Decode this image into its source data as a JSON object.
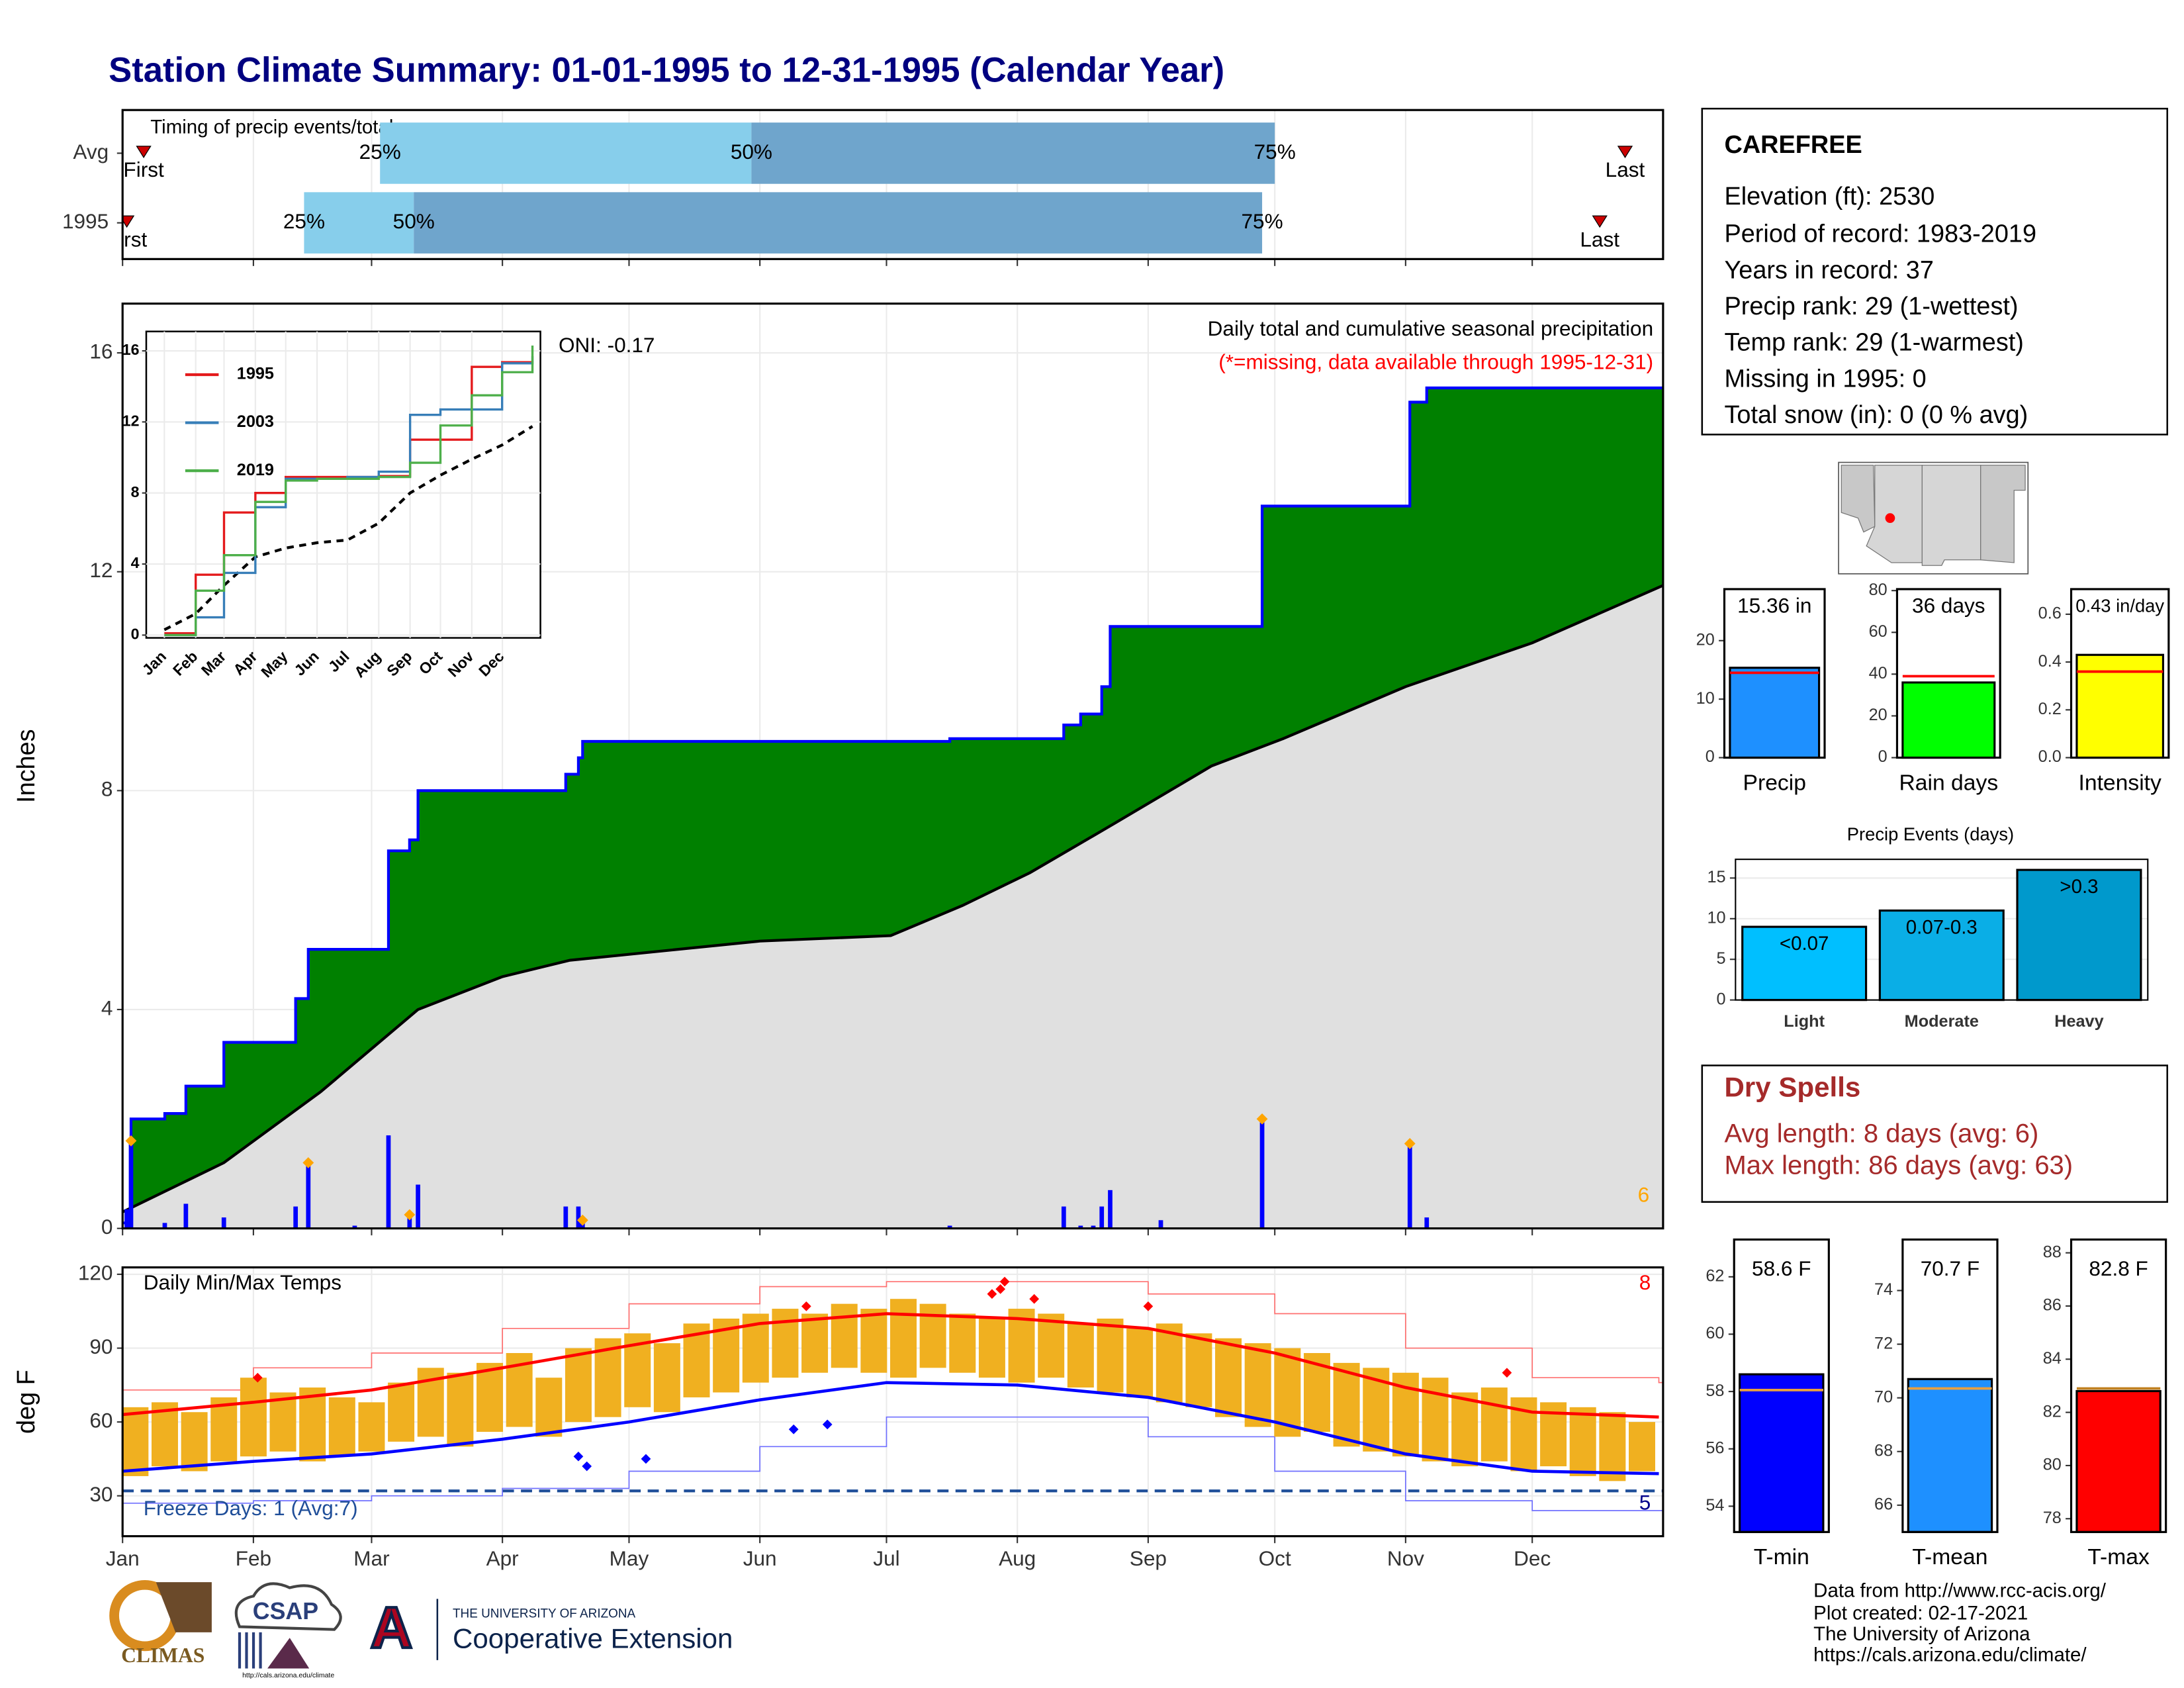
{
  "title": "Station Climate Summary: 01-01-1995 to 12-31-1995 (Calendar Year)",
  "station": {
    "name": "CAREFREE",
    "lines": [
      "Elevation (ft): 2530",
      "Period of record: 1983-2019",
      "Years in record: 37",
      "Precip rank: 29 (1-wettest)",
      "Temp rank: 29 (1-warmest)",
      "Missing in 1995: 0",
      "Total snow (in): 0 (0 % avg)"
    ]
  },
  "dry_spells": {
    "title": "Dry Spells",
    "lines": [
      "Avg length: 8 days (avg: 6)",
      "Max length: 86 days (avg: 63)"
    ]
  },
  "footer": [
    "Data from http://www.rcc-acis.org/",
    "Plot created: 02-17-2021",
    "The University of Arizona",
    "https://cals.arizona.edu/climate/"
  ],
  "logos": {
    "climas": "CLIMAS",
    "csap": "CSAP",
    "csap_url": "http://cals.arizona.edu/climate",
    "ua_mark": "A",
    "ua_name": "THE UNIVERSITY OF ARIZONA",
    "extension": "Cooperative Extension"
  },
  "chart_data": [
    {
      "type": "timing",
      "title": "Timing of precip events/totals",
      "xlim": [
        1,
        366
      ],
      "xticks": [
        1,
        32,
        60,
        91,
        121,
        152,
        182,
        213,
        244,
        274,
        305,
        335
      ],
      "marker_labels": [
        "First",
        "25%",
        "50%",
        "75%",
        "Last"
      ],
      "colors": [
        "#87ceeb",
        "#6fa5cc",
        "#cc0000"
      ],
      "rows": [
        {
          "label": "Avg",
          "values": [
            6,
            62,
            150,
            274,
            357
          ]
        },
        {
          "label": "1995",
          "values": [
            2,
            44,
            70,
            271,
            351
          ]
        }
      ]
    },
    {
      "type": "cumulative",
      "ylabel": "Inches",
      "title": "Daily total and cumulative seasonal precipitation",
      "subtitle": "(*=missing, data available through 1995-12-31)",
      "oni": "ONI: -0.17",
      "record_count": 6,
      "xlim": [
        1,
        366
      ],
      "xticks": [
        1,
        32,
        60,
        91,
        121,
        152,
        182,
        213,
        244,
        274,
        305,
        335
      ],
      "ylim": [
        0,
        16.9
      ],
      "yticks": [
        0,
        4,
        8,
        12,
        16
      ],
      "grid": true,
      "cumulative": {
        "x": [
          1,
          3,
          11,
          16,
          25,
          42,
          45,
          64,
          69,
          71,
          106,
          109,
          110,
          197,
          224,
          228,
          233,
          235,
          271,
          306,
          310
        ],
        "values": [
          0.1,
          2.0,
          2.1,
          2.6,
          3.4,
          4.2,
          5.1,
          6.9,
          7.1,
          8.0,
          8.3,
          8.6,
          8.9,
          8.95,
          9.2,
          9.4,
          9.9,
          11.0,
          13.2,
          15.1,
          15.36
        ],
        "color": "#0000ff",
        "fill": "#008000"
      },
      "average": {
        "x": [
          1,
          25,
          48,
          71,
          91,
          107,
          152,
          183,
          200,
          216,
          236,
          259,
          276,
          305,
          335,
          366
        ],
        "values": [
          0.3,
          1.2,
          2.5,
          4.0,
          4.6,
          4.9,
          5.25,
          5.35,
          5.9,
          6.5,
          7.4,
          8.45,
          8.95,
          9.9,
          10.7,
          11.75
        ],
        "color": "#000000",
        "fill": "#e0e0e0"
      },
      "daily": {
        "x": [
          2,
          3,
          11,
          16,
          25,
          42,
          45,
          56,
          64,
          69,
          71,
          106,
          109,
          110,
          197,
          224,
          228,
          231,
          233,
          235,
          247,
          271,
          306,
          310
        ],
        "values": [
          0.35,
          1.6,
          0.1,
          0.45,
          0.2,
          0.4,
          1.2,
          0.05,
          1.7,
          0.25,
          0.8,
          0.4,
          0.4,
          0.15,
          0.05,
          0.4,
          0.05,
          0.05,
          0.4,
          0.7,
          0.15,
          2.0,
          1.55,
          0.2
        ],
        "records": [
          false,
          true,
          false,
          false,
          false,
          false,
          true,
          false,
          false,
          true,
          false,
          false,
          false,
          true,
          false,
          false,
          false,
          false,
          false,
          false,
          false,
          true,
          true,
          false
        ],
        "color": "#0000ff",
        "record_color": "#ffa500"
      }
    },
    {
      "type": "line",
      "xlim": [
        1,
        366
      ],
      "ylim": [
        0,
        16.7
      ],
      "yticks": [
        0,
        4,
        8,
        12,
        16
      ],
      "xticks": [
        {
          "value": 1,
          "label": "Jan"
        },
        {
          "value": 32,
          "label": "Feb"
        },
        {
          "value": 60,
          "label": "Mar"
        },
        {
          "value": 91,
          "label": "Apr"
        },
        {
          "value": 121,
          "label": "May"
        },
        {
          "value": 152,
          "label": "Jun"
        },
        {
          "value": 182,
          "label": "Jul"
        },
        {
          "value": 213,
          "label": "Aug"
        },
        {
          "value": 244,
          "label": "Sep"
        },
        {
          "value": 274,
          "label": "Oct"
        },
        {
          "value": 305,
          "label": "Nov"
        },
        {
          "value": 335,
          "label": "Dec"
        }
      ],
      "x": [
        1,
        32,
        60,
        91,
        121,
        152,
        182,
        213,
        244,
        274,
        305,
        335,
        365
      ],
      "series": [
        {
          "name": "1995",
          "color": "#e41a1c",
          "values": [
            0.1,
            3.4,
            6.9,
            8.0,
            8.9,
            8.9,
            8.9,
            8.95,
            11.0,
            11.0,
            15.1,
            15.36,
            15.36
          ]
        },
        {
          "name": "2003",
          "color": "#377eb8",
          "values": [
            0,
            1,
            3.5,
            7.2,
            8.8,
            8.8,
            8.9,
            9.2,
            12.4,
            12.7,
            12.7,
            15.3,
            15.7
          ]
        },
        {
          "name": "2019",
          "color": "#4daf4a",
          "values": [
            0,
            2.5,
            4.5,
            7.5,
            8.7,
            8.8,
            8.8,
            8.9,
            9.7,
            11.8,
            13.5,
            14.8,
            16.3
          ]
        }
      ],
      "average": {
        "color": "#000000",
        "values": [
          0.3,
          1.2,
          2.8,
          4.4,
          4.9,
          5.2,
          5.35,
          6.3,
          8.0,
          9.0,
          9.9,
          10.7,
          11.75
        ]
      }
    },
    {
      "type": "temperature",
      "ylabel": "deg F",
      "title": "Daily Min/Max Temps",
      "xlim": [
        1,
        366
      ],
      "ylim": [
        13.6,
        122.8
      ],
      "yticks": [
        30,
        60,
        90,
        120
      ],
      "grid": true,
      "xticks": [
        {
          "value": 1,
          "label": "Jan"
        },
        {
          "value": 32,
          "label": "Feb"
        },
        {
          "value": 60,
          "label": "Mar"
        },
        {
          "value": 91,
          "label": "Apr"
        },
        {
          "value": 121,
          "label": "May"
        },
        {
          "value": 152,
          "label": "Jun"
        },
        {
          "value": 182,
          "label": "Jul"
        },
        {
          "value": 213,
          "label": "Aug"
        },
        {
          "value": 244,
          "label": "Sep"
        },
        {
          "value": 274,
          "label": "Oct"
        },
        {
          "value": 305,
          "label": "Nov"
        },
        {
          "value": 335,
          "label": "Dec"
        }
      ],
      "daily": {
        "color": "#f0b020",
        "x": [
          4,
          11,
          18,
          25,
          32,
          39,
          46,
          53,
          60,
          67,
          74,
          81,
          88,
          95,
          102,
          109,
          116,
          123,
          130,
          137,
          144,
          151,
          158,
          165,
          172,
          179,
          186,
          193,
          200,
          207,
          214,
          221,
          228,
          235,
          242,
          249,
          256,
          263,
          270,
          277,
          284,
          291,
          298,
          305,
          312,
          319,
          326,
          333,
          340,
          347,
          354,
          361
        ],
        "max": [
          66,
          68,
          64,
          70,
          78,
          72,
          74,
          70,
          68,
          76,
          82,
          80,
          84,
          88,
          78,
          90,
          94,
          96,
          92,
          100,
          102,
          104,
          106,
          104,
          108,
          106,
          110,
          108,
          104,
          102,
          106,
          104,
          100,
          102,
          98,
          100,
          96,
          94,
          92,
          90,
          88,
          84,
          82,
          80,
          78,
          72,
          74,
          70,
          68,
          66,
          64,
          60
        ],
        "min": [
          38,
          42,
          40,
          44,
          46,
          48,
          44,
          46,
          48,
          52,
          54,
          50,
          56,
          58,
          54,
          60,
          62,
          66,
          64,
          70,
          72,
          76,
          78,
          80,
          82,
          80,
          78,
          82,
          80,
          78,
          76,
          78,
          74,
          72,
          70,
          68,
          66,
          62,
          58,
          54,
          56,
          50,
          48,
          46,
          44,
          42,
          44,
          40,
          42,
          38,
          36,
          40
        ]
      },
      "normal_x": [
        1,
        32,
        60,
        91,
        121,
        152,
        182,
        213,
        244,
        274,
        305,
        335,
        365
      ],
      "normal_max": {
        "color": "#ff0000",
        "values": [
          63,
          68,
          73,
          82,
          91,
          100,
          104,
          102,
          98,
          88,
          74,
          64,
          62
        ]
      },
      "normal_min": {
        "color": "#0000ff",
        "values": [
          40,
          44,
          47,
          53,
          60,
          69,
          76,
          75,
          70,
          60,
          47,
          40,
          39
        ]
      },
      "record_max": {
        "color": "#ff7070",
        "values": [
          73,
          82,
          88,
          98,
          108,
          115,
          117,
          117,
          112,
          104,
          90,
          78,
          76
        ]
      },
      "record_min": {
        "color": "#7070ff",
        "values": [
          27,
          28,
          30,
          33,
          40,
          50,
          62,
          62,
          54,
          40,
          28,
          24,
          24
        ]
      },
      "record_highs": {
        "color": "#ff0000",
        "x": [
          33,
          163,
          207,
          209,
          210,
          217,
          244,
          329
        ],
        "values": [
          78,
          107,
          112,
          114,
          117,
          110,
          107,
          80
        ]
      },
      "record_lows": {
        "color": "#0000ff",
        "x": [
          109,
          111,
          125,
          160,
          168
        ],
        "values": [
          46,
          42,
          45,
          57,
          59
        ]
      },
      "record_high_count": 8,
      "record_low_count": 5,
      "freeze": {
        "value": 32,
        "label": "Freeze Days: 1 (Avg:7)",
        "color": "#1f4e99"
      }
    },
    {
      "type": "summary_bar",
      "label": "Precip",
      "value": 15.36,
      "value_label": "15.36 in",
      "avg": 14.5,
      "ylim": [
        0,
        28.8
      ],
      "yticks": [
        0,
        10,
        20
      ],
      "color": "#1e90ff",
      "avg_color": "#ff0000"
    },
    {
      "type": "summary_bar",
      "label": "Rain days",
      "value": 36,
      "value_label": "36 days",
      "avg": 39,
      "ylim": [
        0,
        80.7
      ],
      "yticks": [
        0,
        20,
        40,
        60,
        80
      ],
      "color": "#00ff00",
      "avg_color": "#ff0000"
    },
    {
      "type": "summary_bar",
      "label": "Intensity",
      "value": 0.43,
      "value_label": "0.43 in/day",
      "avg": 0.36,
      "ylim": [
        0,
        0.705
      ],
      "yticks": [
        {
          "value": 0,
          "label": "0.0"
        },
        {
          "value": 0.2,
          "label": "0.2"
        },
        {
          "value": 0.4,
          "label": "0.4"
        },
        {
          "value": 0.6,
          "label": "0.6"
        }
      ],
      "color": "#ffff00",
      "avg_color": "#ff0000"
    },
    {
      "type": "bar",
      "title": "Precip Events (days)",
      "categories": [
        "Light",
        "Moderate",
        "Heavy"
      ],
      "values": [
        9,
        11,
        16
      ],
      "bin_labels": [
        "<0.07",
        "0.07-0.3",
        ">0.3"
      ],
      "colors": [
        "#00bfff",
        "#0aaee6",
        "#0099cc"
      ],
      "ylim": [
        0,
        17.3
      ],
      "yticks": [
        0,
        5,
        10,
        15
      ],
      "grid": true
    },
    {
      "type": "summary_bar",
      "label": "T-min",
      "value": 58.6,
      "value_label": "58.6 F",
      "avg": 58.05,
      "ylim": [
        53.1,
        63.3
      ],
      "yticks": [
        54,
        56,
        58,
        60,
        62
      ],
      "color": "#0000ff",
      "avg_color": "#e8a040"
    },
    {
      "type": "summary_bar",
      "label": "T-mean",
      "value": 70.7,
      "value_label": "70.7 F",
      "avg": 70.35,
      "ylim": [
        65,
        75.9
      ],
      "yticks": [
        66,
        68,
        70,
        72,
        74
      ],
      "color": "#1e90ff",
      "avg_color": "#e8a040"
    },
    {
      "type": "summary_bar",
      "label": "T-max",
      "value": 82.8,
      "value_label": "82.8 F",
      "avg": 82.9,
      "ylim": [
        77.5,
        88.5
      ],
      "yticks": [
        78,
        80,
        82,
        84,
        86,
        88
      ],
      "color": "#ff0000",
      "avg_color": "#c08020"
    }
  ]
}
